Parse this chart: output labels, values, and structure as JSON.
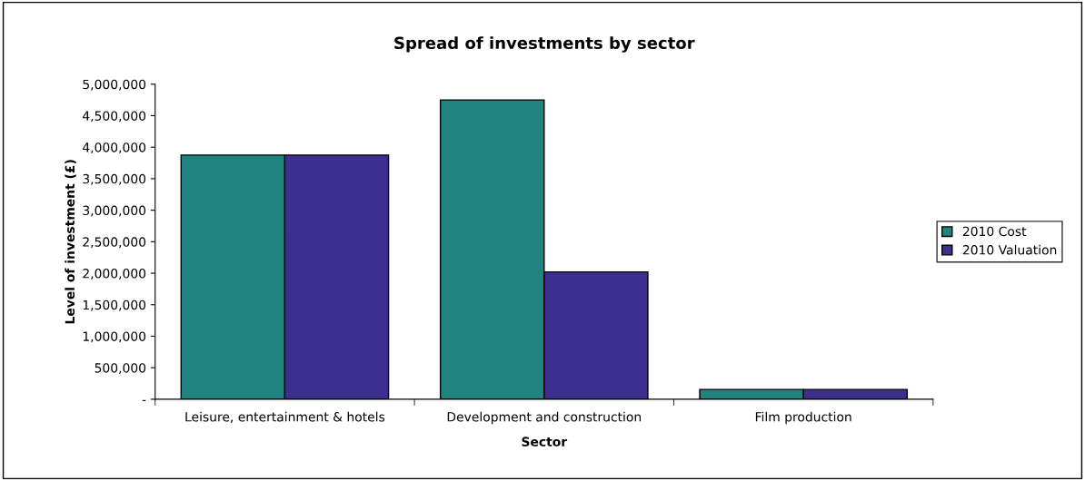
{
  "chart_data": {
    "type": "bar",
    "title": "Spread of investments by sector",
    "xlabel": "Sector",
    "ylabel": "Level of investment (£)",
    "categories": [
      "Leisure, entertainment & hotels",
      "Development and construction",
      "Film production"
    ],
    "series": [
      {
        "name": "2010 Cost",
        "color": "#218380",
        "values": [
          3875000,
          4750000,
          155000
        ]
      },
      {
        "name": "2010 Valuation",
        "color": "#3d2f8f",
        "values": [
          3875000,
          2020000,
          155000
        ]
      }
    ],
    "ylim": [
      0,
      5000000
    ],
    "yticks": [
      {
        "value": 0,
        "label": "-"
      },
      {
        "value": 500000,
        "label": "500,000"
      },
      {
        "value": 1000000,
        "label": "1,000,000"
      },
      {
        "value": 1500000,
        "label": "1,500,000"
      },
      {
        "value": 2000000,
        "label": "2,000,000"
      },
      {
        "value": 2500000,
        "label": "2,500,000"
      },
      {
        "value": 3000000,
        "label": "3,000,000"
      },
      {
        "value": 3500000,
        "label": "3,500,000"
      },
      {
        "value": 4000000,
        "label": "4,000,000"
      },
      {
        "value": 4500000,
        "label": "4,500,000"
      },
      {
        "value": 5000000,
        "label": "5,000,000"
      }
    ],
    "grid": false,
    "legend": "right"
  }
}
